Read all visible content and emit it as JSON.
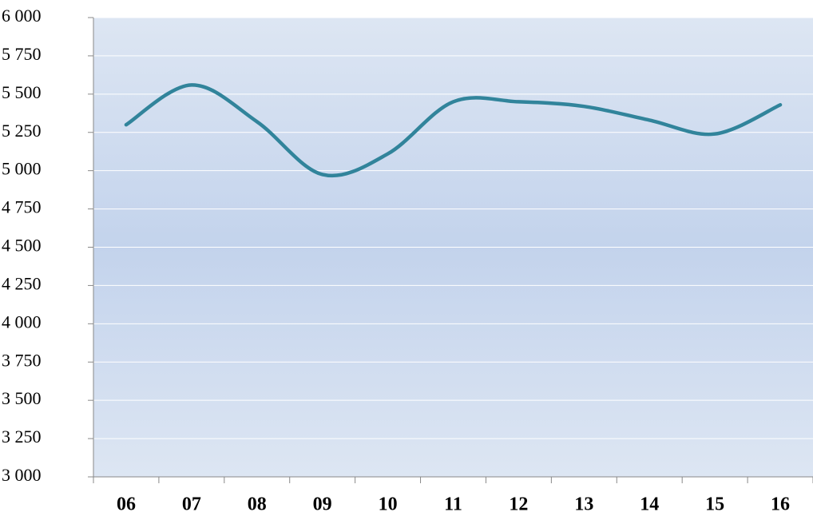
{
  "chart_data": {
    "type": "line",
    "categories": [
      "06",
      "07",
      "08",
      "09",
      "10",
      "11",
      "12",
      "13",
      "14",
      "15",
      "16"
    ],
    "series": [
      {
        "color": "#31849b",
        "values": [
          5300,
          5560,
          5320,
          4975,
          5110,
          5450,
          5450,
          5420,
          5330,
          5240,
          5430
        ]
      }
    ],
    "ylim": [
      3000,
      6000
    ],
    "yticks": [
      {
        "value": 3000,
        "label": "3 000"
      },
      {
        "value": 3250,
        "label": "3 250"
      },
      {
        "value": 3500,
        "label": "3 500"
      },
      {
        "value": 3750,
        "label": "3 750"
      },
      {
        "value": 4000,
        "label": "4 000"
      },
      {
        "value": 4250,
        "label": "4 250"
      },
      {
        "value": 4500,
        "label": "4 500"
      },
      {
        "value": 4750,
        "label": "4 750"
      },
      {
        "value": 5000,
        "label": "5 000"
      },
      {
        "value": 5250,
        "label": "5 250"
      },
      {
        "value": 5500,
        "label": "5 500"
      },
      {
        "value": 5750,
        "label": "5 750"
      },
      {
        "value": 6000,
        "label": "6 000"
      }
    ],
    "grid": true,
    "smooth": true
  }
}
